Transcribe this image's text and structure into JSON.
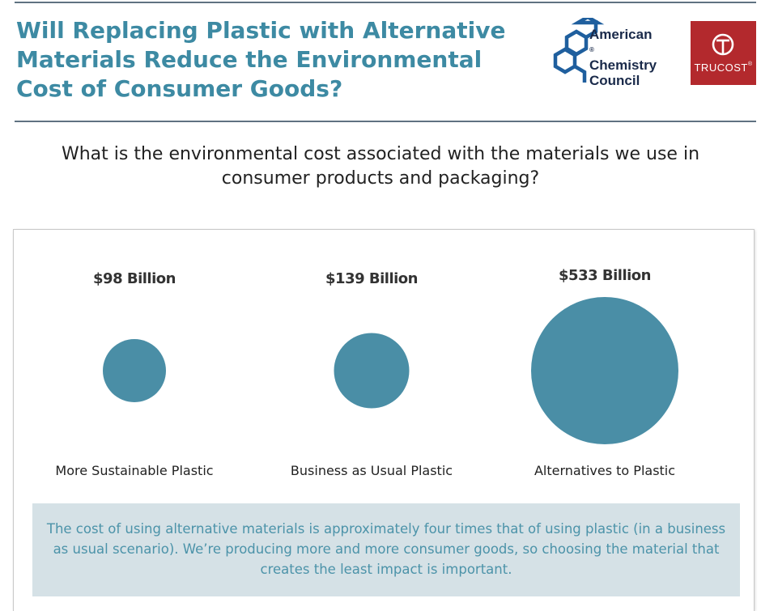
{
  "header": {
    "title": "Will Replacing Plastic with Alternative Materials Reduce the Environmental Cost of Consumer Goods?",
    "logos": {
      "acc": {
        "line1": "American",
        "line2": "Chemistry",
        "line3": "Council",
        "reg": "®",
        "color": "#1a2a4a",
        "accent": "#1f5f9e"
      },
      "trucost": {
        "word": "TRUCOST",
        "reg": "®",
        "color": "#b3292d"
      }
    }
  },
  "question": "What is the environmental cost associated with the materials we use in consumer products and packaging?",
  "chart_data": {
    "type": "bubble",
    "title": "",
    "categories": [
      "More Sustainable Plastic",
      "Business as Usual Plastic",
      "Alternatives to Plastic"
    ],
    "values": [
      98,
      139,
      533
    ],
    "value_labels": [
      "$98 Billion",
      "$139 Billion",
      "$533 Billion"
    ],
    "unit": "Billion USD",
    "bubble_color": "#4a8ea6",
    "legend": "none",
    "grid": false
  },
  "callout": {
    "text": "The cost of using alternative materials is approximately four times that of using plastic (in a business as usual scenario). We’re producing more and more consumer goods, so choosing the material that creates the least impact is important.",
    "background": "#d5e1e6",
    "text_color": "#4c93a9"
  },
  "colors": {
    "title": "#3d8aa3",
    "rule": "#5f7281"
  }
}
